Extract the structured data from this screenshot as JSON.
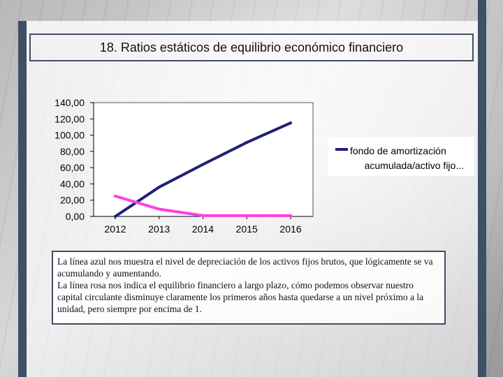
{
  "slide": {
    "title": "18. Ratios estáticos de equilibrio económico financiero",
    "note": [
      "La línea azul nos muestra el nivel de depreciación de los activos fijos brutos, que lógicamente se va acumulando y aumentando.",
      "La línea rosa nos indica el equilibrio financiero a largo plazo, cómo podemos observar nuestro capital circulante disminuye claramente los primeros años hasta quedarse a un nivel próximo a la unidad, pero siempre por encima de 1."
    ]
  },
  "chart_data": {
    "type": "line",
    "title": "",
    "xlabel": "",
    "ylabel": "",
    "categories": [
      "2012",
      "2013",
      "2014",
      "2015",
      "2016"
    ],
    "y_ticks": [
      "0,00",
      "20,00",
      "40,00",
      "60,00",
      "80,00",
      "100,00",
      "120,00",
      "140,00"
    ],
    "ylim": [
      0,
      140
    ],
    "grid": false,
    "legend_position": "right",
    "series": [
      {
        "name": "fondo de amortización acumulada/activo fijo...",
        "legend_lines": [
          "fondo de amortización",
          "acumulada/activo fijo..."
        ],
        "color": "#1f1f7a",
        "values": [
          0,
          36,
          64,
          91,
          115
        ]
      },
      {
        "name": "",
        "color": "#ff3ee6",
        "values": [
          25,
          9,
          1,
          1,
          1
        ]
      }
    ]
  }
}
